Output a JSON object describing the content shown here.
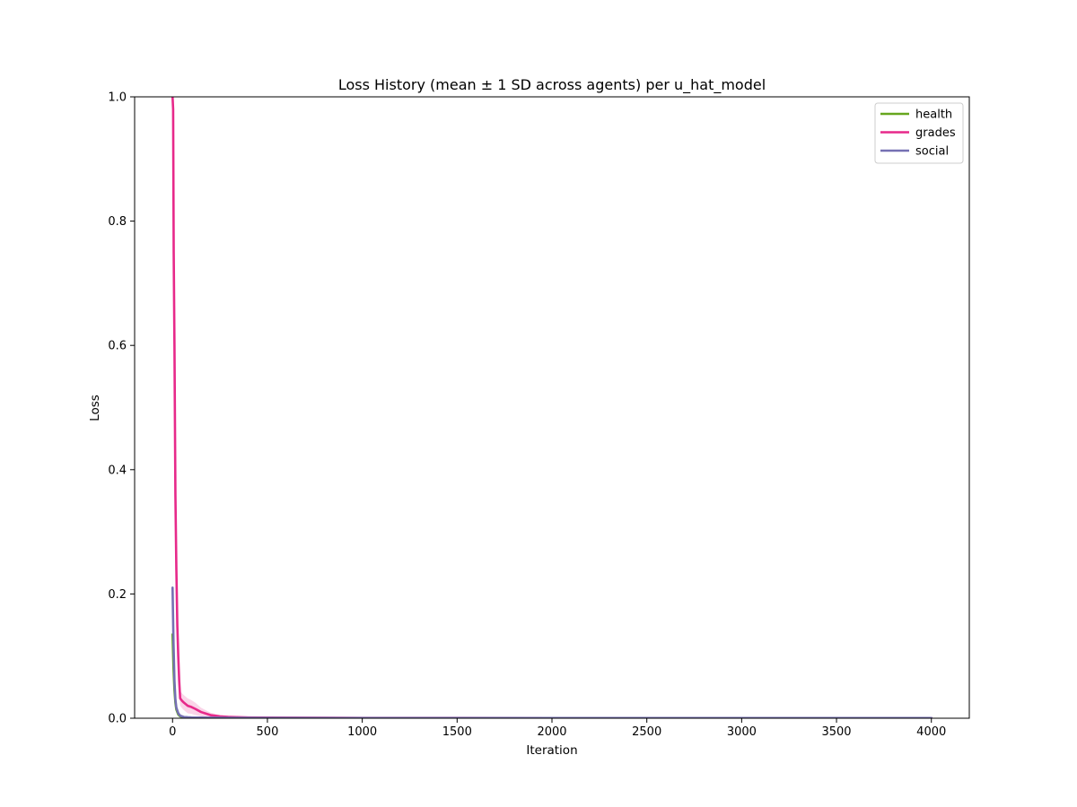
{
  "chart_data": {
    "type": "line",
    "title": "Loss History (mean ± 1 SD across agents) per u_hat_model",
    "xlabel": "Iteration",
    "ylabel": "Loss",
    "xlim": [
      -200,
      4200
    ],
    "ylim": [
      0,
      1.0
    ],
    "xticks": [
      0,
      500,
      1000,
      1500,
      2000,
      2500,
      3000,
      3500,
      4000
    ],
    "xtick_labels": [
      "0",
      "500",
      "1000",
      "1500",
      "2000",
      "2500",
      "3000",
      "3500",
      "4000"
    ],
    "yticks": [
      0.0,
      0.2,
      0.4,
      0.6,
      0.8,
      1.0
    ],
    "ytick_labels": [
      "0.0",
      "0.2",
      "0.4",
      "0.6",
      "0.8",
      "1.0"
    ],
    "grid": false,
    "legend_position": "top-right",
    "series": [
      {
        "name": "health",
        "color": "#66a61e",
        "x": [
          0,
          5,
          10,
          15,
          20,
          30,
          40,
          60,
          80,
          100,
          150,
          200,
          300,
          500,
          1000,
          2000,
          3000,
          4000
        ],
        "mean": [
          0.135,
          0.08,
          0.045,
          0.025,
          0.014,
          0.006,
          0.003,
          0.0015,
          0.001,
          0.0007,
          0.0004,
          0.0003,
          0.0002,
          0.0001,
          0.0001,
          0.0001,
          0.0001,
          0.0001
        ],
        "sd": [
          0.01,
          0.01,
          0.008,
          0.006,
          0.004,
          0.003,
          0.002,
          0.001,
          0.001,
          0.0005,
          0.0003,
          0.0002,
          0.0001,
          0.0001,
          0.0001,
          0.0001,
          0.0001,
          0.0001
        ]
      },
      {
        "name": "grades",
        "color": "#e7298a",
        "x": [
          0,
          3,
          6,
          10,
          15,
          20,
          25,
          30,
          35,
          40,
          50,
          60,
          80,
          100,
          120,
          150,
          180,
          200,
          250,
          300,
          400,
          500,
          1000,
          2000,
          3000,
          4000
        ],
        "mean": [
          1.0,
          0.98,
          0.75,
          0.6,
          0.36,
          0.24,
          0.15,
          0.1,
          0.06,
          0.032,
          0.028,
          0.025,
          0.02,
          0.018,
          0.015,
          0.01,
          0.007,
          0.005,
          0.003,
          0.002,
          0.0012,
          0.001,
          0.0005,
          0.0003,
          0.0002,
          0.0002
        ],
        "sd": [
          0.03,
          0.05,
          0.2,
          0.18,
          0.12,
          0.08,
          0.05,
          0.03,
          0.02,
          0.012,
          0.012,
          0.012,
          0.012,
          0.011,
          0.01,
          0.007,
          0.005,
          0.004,
          0.002,
          0.001,
          0.0008,
          0.0005,
          0.0002,
          0.0001,
          0.0001,
          0.0001
        ]
      },
      {
        "name": "social",
        "color": "#7570b3",
        "x": [
          0,
          5,
          10,
          15,
          20,
          30,
          40,
          60,
          80,
          100,
          150,
          200,
          300,
          500,
          1000,
          2000,
          3000,
          4000
        ],
        "mean": [
          0.21,
          0.12,
          0.06,
          0.03,
          0.017,
          0.008,
          0.004,
          0.002,
          0.0015,
          0.0012,
          0.001,
          0.0008,
          0.0006,
          0.0004,
          0.0003,
          0.0003,
          0.0003,
          0.0003
        ],
        "sd": [
          0.025,
          0.03,
          0.02,
          0.012,
          0.008,
          0.004,
          0.003,
          0.002,
          0.001,
          0.0008,
          0.0005,
          0.0004,
          0.0003,
          0.0002,
          0.0001,
          0.0001,
          0.0001,
          0.0001
        ]
      }
    ]
  }
}
